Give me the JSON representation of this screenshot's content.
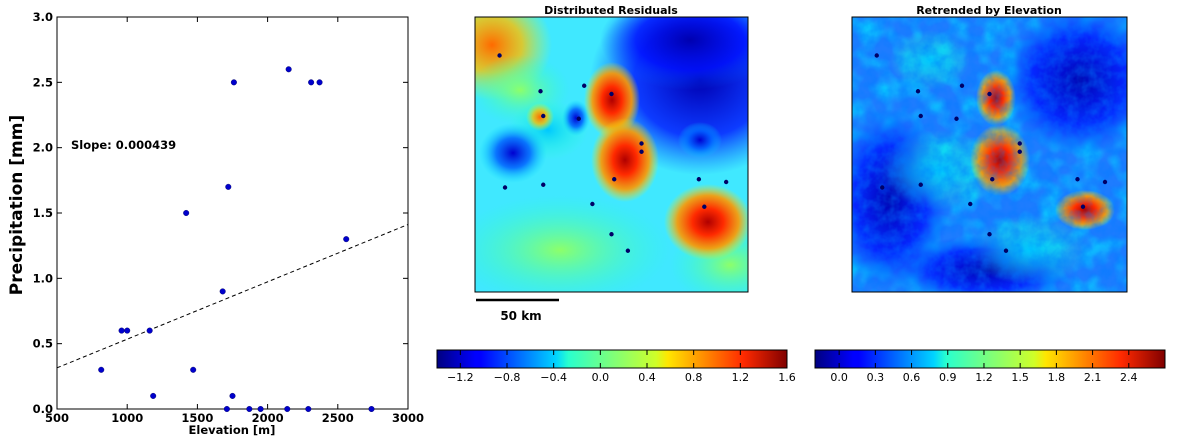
{
  "chart_data": [
    {
      "type": "scatter",
      "title": "",
      "xlabel": "Elevation [m]",
      "ylabel": "Precipitation [mm]",
      "xlim": [
        500,
        3000
      ],
      "ylim": [
        0,
        3.0
      ],
      "xticks": [
        500,
        1000,
        1500,
        2000,
        2500,
        3000
      ],
      "yticks": [
        0.0,
        0.5,
        1.0,
        1.5,
        2.0,
        2.5,
        3.0
      ],
      "annotation": "Slope: 0.000439",
      "marker_color": "#0000cc",
      "points": [
        [
          815,
          0.3
        ],
        [
          960,
          0.6
        ],
        [
          1000,
          0.6
        ],
        [
          1160,
          0.6
        ],
        [
          1185,
          0.1
        ],
        [
          1420,
          1.5
        ],
        [
          1470,
          0.3
        ],
        [
          1680,
          0.9
        ],
        [
          1720,
          1.7
        ],
        [
          1760,
          2.5
        ],
        [
          1750,
          0.1
        ],
        [
          1710,
          0.0
        ],
        [
          1870,
          0.0
        ],
        [
          1950,
          0.0
        ],
        [
          2150,
          2.6
        ],
        [
          2140,
          0.0
        ],
        [
          2310,
          2.5
        ],
        [
          2370,
          2.5
        ],
        [
          2290,
          0.0
        ],
        [
          2560,
          1.3
        ],
        [
          2740,
          0.0
        ]
      ],
      "trend_line": {
        "x": [
          500,
          3000
        ],
        "y": [
          0.315,
          1.412
        ],
        "style": "dashed"
      }
    },
    {
      "type": "heatmap",
      "title": "Distributed Residuals",
      "colorbar": {
        "min": -1.4,
        "max": 1.6,
        "ticks": [
          -1.2,
          -0.8,
          -0.4,
          0.0,
          0.4,
          0.8,
          1.2,
          1.6
        ],
        "tick_labels": [
          "−1.2",
          "−0.8",
          "−0.4",
          "0.0",
          "0.4",
          "0.8",
          "1.2",
          "1.6"
        ]
      },
      "scale_bar": "50 km"
    },
    {
      "type": "heatmap",
      "title": "Retrended by Elevation",
      "colorbar": {
        "min": -0.2,
        "max": 2.7,
        "ticks": [
          0.0,
          0.3,
          0.6,
          0.9,
          1.2,
          1.5,
          1.8,
          2.1,
          2.4
        ],
        "tick_labels": [
          "0.0",
          "0.3",
          "0.6",
          "0.9",
          "1.2",
          "1.5",
          "1.8",
          "2.1",
          "2.4"
        ]
      }
    }
  ],
  "colormap": "jet",
  "station_marker_color": "#000066"
}
